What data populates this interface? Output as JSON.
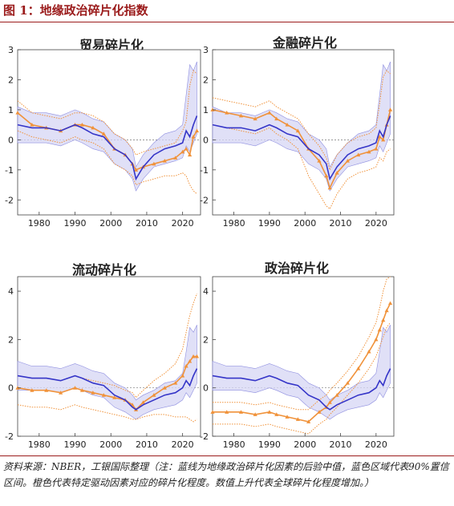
{
  "figure": {
    "title": "图 1：地缘政治碎片化指数",
    "note": "资料来源：NBER，工银国际整理（注：蓝线为地缘政治碎片化因素的后验中值，蓝色区域代表90%置信区间。橙色代表特定驱动因素对应的碎片化程度。数值上升代表全球碎片化程度增加。）"
  },
  "colors": {
    "accent": "#9b1c1c",
    "blue": "#3535c8",
    "band": "#d6d6f4",
    "orange": "#f0923a"
  },
  "chart_data": [
    {
      "type": "line",
      "title": "贸易碎片化",
      "xlim": [
        1974,
        2025
      ],
      "ylim": [
        -2.5,
        3
      ],
      "xticks": [
        1980,
        1990,
        2000,
        2010,
        2020
      ],
      "yticks": [
        -2,
        -1,
        0,
        1,
        2,
        3
      ],
      "x": [
        1974,
        1978,
        1982,
        1986,
        1990,
        1992,
        1995,
        1998,
        2001,
        2004,
        2006,
        2007,
        2009,
        2012,
        2015,
        2018,
        2020,
        2021,
        2022,
        2023,
        2024
      ],
      "median": [
        0.5,
        0.4,
        0.4,
        0.3,
        0.5,
        0.4,
        0.2,
        0.1,
        -0.3,
        -0.5,
        -0.8,
        -1.3,
        -0.9,
        -0.5,
        -0.3,
        -0.2,
        -0.1,
        0.3,
        0.1,
        0.5,
        0.8
      ],
      "band_low": [
        -0.1,
        -0.1,
        -0.1,
        -0.2,
        0.0,
        -0.1,
        -0.3,
        -0.4,
        -0.8,
        -1.0,
        -1.3,
        -1.7,
        -1.3,
        -0.9,
        -0.8,
        -0.7,
        -0.6,
        -0.2,
        -0.4,
        -0.1,
        0.2
      ],
      "band_high": [
        1.1,
        0.9,
        0.9,
        0.8,
        1.0,
        0.9,
        0.7,
        0.6,
        0.2,
        0.0,
        -0.3,
        -0.9,
        -0.5,
        -0.1,
        0.2,
        0.3,
        0.5,
        1.5,
        2.5,
        2.3,
        2.6
      ],
      "driver": [
        0.9,
        0.5,
        0.4,
        0.3,
        0.5,
        0.5,
        0.4,
        0.2,
        -0.3,
        -0.5,
        -0.8,
        -1.0,
        -0.9,
        -0.8,
        -0.7,
        -0.6,
        -0.4,
        -0.3,
        -0.5,
        0.1,
        0.3
      ],
      "driver_low": [
        0.3,
        0.1,
        0.0,
        -0.1,
        0.1,
        0.0,
        -0.1,
        -0.3,
        -0.8,
        -1.0,
        -1.2,
        -1.5,
        -1.4,
        -1.3,
        -1.2,
        -1.2,
        -1.1,
        -1.2,
        -1.5,
        -1.7,
        -1.8
      ],
      "driver_high": [
        1.3,
        0.9,
        0.8,
        0.7,
        0.9,
        0.9,
        0.8,
        0.6,
        0.2,
        0.0,
        -0.3,
        -0.5,
        -0.4,
        -0.3,
        -0.2,
        -0.1,
        0.3,
        0.6,
        1.8,
        2.3,
        2.2
      ]
    },
    {
      "type": "line",
      "title": "金融碎片化",
      "xlim": [
        1974,
        2025
      ],
      "ylim": [
        -2.5,
        3
      ],
      "xticks": [
        1980,
        1990,
        2000,
        2010,
        2020
      ],
      "yticks": [
        -2,
        -1,
        0,
        1,
        2,
        3
      ],
      "x": [
        1974,
        1978,
        1982,
        1986,
        1990,
        1992,
        1995,
        1998,
        2001,
        2004,
        2006,
        2007,
        2009,
        2012,
        2015,
        2018,
        2020,
        2021,
        2022,
        2023,
        2024
      ],
      "median": [
        0.5,
        0.4,
        0.4,
        0.3,
        0.5,
        0.4,
        0.2,
        0.1,
        -0.3,
        -0.5,
        -0.8,
        -1.3,
        -0.9,
        -0.5,
        -0.3,
        -0.2,
        -0.1,
        0.3,
        0.1,
        0.5,
        0.8
      ],
      "band_low": [
        -0.1,
        -0.1,
        -0.1,
        -0.2,
        0.0,
        -0.1,
        -0.3,
        -0.4,
        -0.8,
        -1.0,
        -1.3,
        -1.7,
        -1.3,
        -0.9,
        -0.8,
        -0.7,
        -0.6,
        -0.2,
        -0.4,
        -0.1,
        0.2
      ],
      "band_high": [
        1.1,
        0.9,
        0.9,
        0.8,
        1.0,
        0.9,
        0.7,
        0.6,
        0.2,
        0.0,
        -0.3,
        -0.9,
        -0.5,
        -0.1,
        0.2,
        0.3,
        0.5,
        1.5,
        2.5,
        2.3,
        2.6
      ],
      "driver": [
        1.0,
        0.9,
        0.8,
        0.7,
        0.9,
        0.7,
        0.5,
        0.3,
        -0.3,
        -0.7,
        -1.2,
        -1.6,
        -1.1,
        -0.7,
        -0.5,
        -0.4,
        -0.3,
        0.1,
        0.0,
        0.5,
        1.0
      ],
      "driver_low": [
        0.5,
        0.4,
        0.3,
        0.2,
        0.4,
        0.2,
        0.0,
        -0.3,
        -1.2,
        -1.8,
        -2.2,
        -2.3,
        -1.8,
        -1.3,
        -1.1,
        -1.0,
        -0.9,
        -0.6,
        -0.7,
        -0.4,
        -0.3
      ],
      "driver_high": [
        1.4,
        1.3,
        1.2,
        1.1,
        1.3,
        1.1,
        0.9,
        0.7,
        0.2,
        -0.2,
        -0.6,
        -1.0,
        -0.5,
        -0.1,
        0.1,
        0.2,
        0.4,
        1.2,
        2.1,
        2.3,
        2.2
      ]
    },
    {
      "type": "line",
      "title": "流动碎片化",
      "xlim": [
        1974,
        2025
      ],
      "ylim": [
        -2,
        4.6
      ],
      "xticks": [
        1980,
        1990,
        2000,
        2010,
        2020
      ],
      "yticks": [
        -2,
        0,
        2,
        4
      ],
      "x": [
        1974,
        1978,
        1982,
        1986,
        1990,
        1992,
        1995,
        1998,
        2001,
        2004,
        2006,
        2007,
        2009,
        2012,
        2015,
        2018,
        2020,
        2021,
        2022,
        2023,
        2024
      ],
      "median": [
        0.5,
        0.4,
        0.4,
        0.3,
        0.5,
        0.4,
        0.2,
        0.1,
        -0.3,
        -0.5,
        -0.8,
        -0.9,
        -0.7,
        -0.5,
        -0.3,
        -0.2,
        0.0,
        0.3,
        0.1,
        0.5,
        0.8
      ],
      "band_low": [
        -0.1,
        -0.1,
        -0.1,
        -0.2,
        0.0,
        -0.1,
        -0.3,
        -0.4,
        -0.8,
        -1.0,
        -1.2,
        -1.3,
        -1.1,
        -0.9,
        -0.8,
        -0.7,
        -0.5,
        -0.2,
        -0.4,
        -0.1,
        0.2
      ],
      "band_high": [
        1.1,
        0.9,
        0.9,
        0.8,
        1.0,
        0.9,
        0.7,
        0.6,
        0.2,
        0.0,
        -0.3,
        -0.5,
        -0.3,
        -0.1,
        0.2,
        0.3,
        0.6,
        1.5,
        2.5,
        2.3,
        2.6
      ],
      "driver": [
        0.0,
        -0.1,
        -0.1,
        -0.2,
        0.0,
        -0.1,
        -0.2,
        -0.3,
        -0.4,
        -0.5,
        -0.7,
        -0.9,
        -0.6,
        -0.3,
        0.0,
        0.2,
        0.5,
        0.9,
        1.1,
        1.3,
        1.3
      ],
      "driver_low": [
        -0.7,
        -0.8,
        -0.8,
        -0.9,
        -0.7,
        -0.8,
        -0.9,
        -1.0,
        -1.1,
        -1.2,
        -1.3,
        -1.3,
        -1.2,
        -1.1,
        -1.1,
        -1.2,
        -1.2,
        -1.2,
        -1.3,
        -1.4,
        -1.3
      ],
      "driver_high": [
        0.5,
        0.4,
        0.4,
        0.3,
        0.5,
        0.4,
        0.3,
        0.2,
        0.1,
        -0.1,
        -0.2,
        -0.4,
        -0.1,
        0.3,
        0.6,
        1.0,
        1.6,
        2.3,
        3.0,
        3.5,
        3.9
      ]
    },
    {
      "type": "line",
      "title": "政治碎片化",
      "xlim": [
        1974,
        2025
      ],
      "ylim": [
        -2,
        4.6
      ],
      "xticks": [
        1980,
        1990,
        2000,
        2010,
        2020
      ],
      "yticks": [
        -2,
        0,
        2,
        4
      ],
      "x": [
        1974,
        1978,
        1982,
        1986,
        1990,
        1992,
        1995,
        1998,
        2001,
        2004,
        2006,
        2007,
        2009,
        2012,
        2015,
        2018,
        2020,
        2021,
        2022,
        2023,
        2024
      ],
      "median": [
        0.5,
        0.4,
        0.4,
        0.3,
        0.5,
        0.4,
        0.2,
        0.1,
        -0.3,
        -0.5,
        -0.8,
        -0.9,
        -0.7,
        -0.5,
        -0.3,
        -0.2,
        0.0,
        0.3,
        0.1,
        0.5,
        0.8
      ],
      "band_low": [
        -0.1,
        -0.1,
        -0.1,
        -0.2,
        0.0,
        -0.1,
        -0.3,
        -0.4,
        -0.8,
        -1.0,
        -1.2,
        -1.3,
        -1.1,
        -0.9,
        -0.8,
        -0.7,
        -0.5,
        -0.2,
        -0.4,
        -0.1,
        0.2
      ],
      "band_high": [
        1.1,
        0.9,
        0.9,
        0.8,
        1.0,
        0.9,
        0.7,
        0.6,
        0.2,
        0.0,
        -0.3,
        -0.5,
        -0.3,
        -0.1,
        0.2,
        0.3,
        0.6,
        1.5,
        2.5,
        2.3,
        2.6
      ],
      "driver": [
        -1.0,
        -1.0,
        -1.0,
        -1.1,
        -1.0,
        -1.1,
        -1.2,
        -1.3,
        -1.4,
        -1.0,
        -0.8,
        -0.6,
        -0.3,
        0.2,
        0.8,
        1.5,
        2.0,
        2.4,
        2.8,
        3.2,
        3.5
      ],
      "driver_low": [
        -1.5,
        -1.5,
        -1.5,
        -1.6,
        -1.5,
        -1.6,
        -1.7,
        -1.8,
        -1.9,
        -1.5,
        -1.3,
        -1.1,
        -0.8,
        -0.3,
        0.2,
        0.8,
        1.3,
        1.7,
        2.1,
        2.5,
        2.7
      ],
      "driver_high": [
        -0.6,
        -0.6,
        -0.6,
        -0.7,
        -0.6,
        -0.7,
        -0.8,
        -0.9,
        -0.9,
        -0.5,
        -0.3,
        -0.1,
        0.2,
        0.7,
        1.3,
        2.1,
        2.7,
        3.3,
        4.0,
        4.5,
        4.6
      ]
    }
  ]
}
